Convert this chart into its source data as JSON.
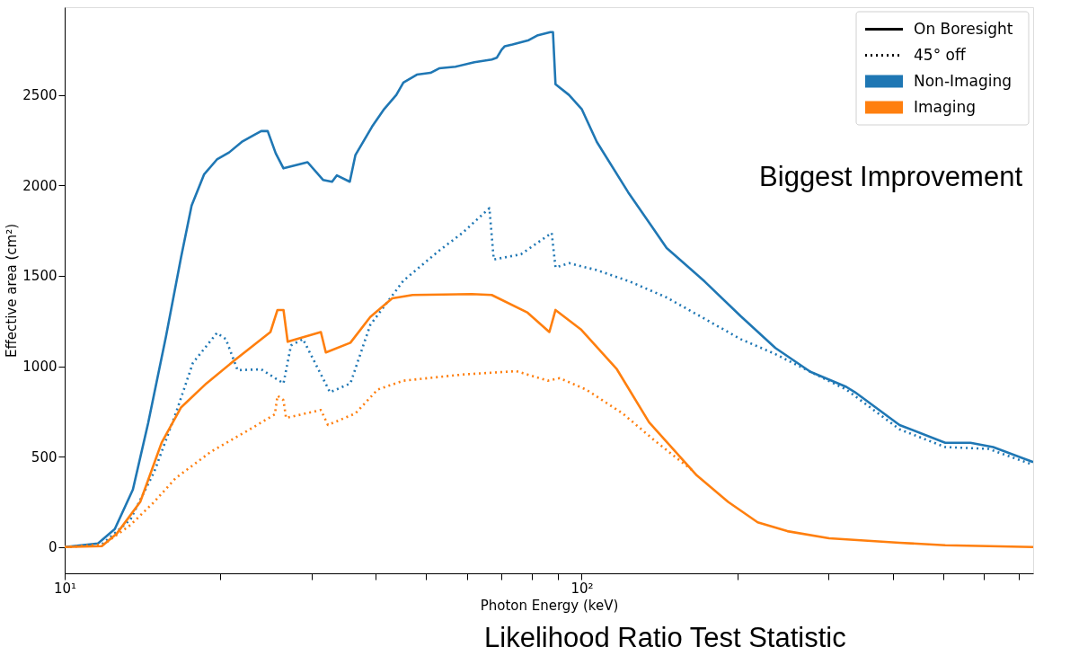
{
  "chart_data": {
    "type": "line",
    "xlabel": "Photon Energy (keV)",
    "ylabel": "Effective area (cm²)",
    "log": "x",
    "xlim": [
      10,
      747
    ],
    "ylim": [
      -145,
      2985
    ],
    "xticks": [
      {
        "value": 10,
        "label": "10¹"
      },
      {
        "value": 20,
        "label": null
      },
      {
        "value": 30,
        "label": null
      },
      {
        "value": 40,
        "label": null
      },
      {
        "value": 50,
        "label": null
      },
      {
        "value": 60,
        "label": null
      },
      {
        "value": 70,
        "label": null
      },
      {
        "value": 80,
        "label": null
      },
      {
        "value": 90,
        "label": null
      },
      {
        "value": 100,
        "label": "10²"
      },
      {
        "value": 200,
        "label": null
      },
      {
        "value": 300,
        "label": null
      },
      {
        "value": 400,
        "label": null
      },
      {
        "value": 500,
        "label": null
      },
      {
        "value": 600,
        "label": null
      },
      {
        "value": 700,
        "label": null
      }
    ],
    "yticks": [
      0,
      500,
      1000,
      1500,
      2000,
      2500
    ],
    "grid": false,
    "legend": "top right",
    "marker": "none",
    "annotations": [
      "On Boresight",
      "45° off",
      "Biggest Improvement",
      "Likelihood Ratio Test Statistic"
    ],
    "series": [
      {
        "name": "Non-Imaging",
        "color": "#1f77b4",
        "line_style": "solid",
        "x": [
          10,
          11.6,
          12.5,
          13.55,
          14.5,
          15.7,
          16.8,
          17.6,
          18.6,
          19.7,
          20.8,
          22,
          23.3,
          24,
          24.7,
          25.6,
          26.5,
          29.5,
          31.6,
          32.9,
          33.6,
          35.6,
          36.5,
          39.3,
          41.5,
          43.8,
          45.2,
          48,
          51,
          53,
          57,
          62,
          67,
          68.5,
          70,
          71,
          73.5,
          79,
          82,
          87,
          88,
          89,
          94.5,
          100,
          107,
          123,
          146,
          173,
          203,
          237,
          277,
          325,
          338,
          412,
          505,
          565,
          625,
          747
        ],
        "values": [
          0,
          20,
          100,
          318,
          685,
          1164,
          1605,
          1888,
          2060,
          2143,
          2182,
          2240,
          2280,
          2300,
          2300,
          2177,
          2094,
          2128,
          2030,
          2020,
          2055,
          2020,
          2167,
          2324,
          2422,
          2500,
          2568,
          2612,
          2622,
          2647,
          2656,
          2681,
          2696,
          2705,
          2750,
          2769,
          2779,
          2803,
          2828,
          2847,
          2847,
          2559,
          2500,
          2422,
          2240,
          1962,
          1654,
          1468,
          1277,
          1101,
          969,
          886,
          856,
          675,
          577,
          577,
          553,
          470
        ]
      },
      {
        "color": "#1f77b4",
        "line_style": "dotted",
        "x": [
          10,
          11.8,
          13.4,
          14.9,
          16.4,
          17.7,
          19.7,
          20.5,
          21.6,
          24,
          26.5,
          27.4,
          28.9,
          32.6,
          35.7,
          39,
          45.2,
          53,
          58.8,
          66.3,
          67.6,
          76.3,
          87.5,
          89,
          94.6,
          107,
          124,
          146,
          173,
          203,
          237,
          277,
          325,
          412,
          505,
          612,
          747
        ],
        "values": [
          0,
          15,
          152,
          416,
          739,
          1018,
          1184,
          1150,
          978,
          983,
          905,
          1115,
          1150,
          856,
          905,
          1228,
          1473,
          1639,
          1737,
          1874,
          1590,
          1619,
          1737,
          1546,
          1570,
          1531,
          1468,
          1380,
          1262,
          1150,
          1067,
          969,
          871,
          651,
          553,
          543,
          455
        ]
      },
      {
        "name": "Imaging",
        "color": "#ff7f0e",
        "line_style": "solid",
        "x": [
          10,
          11.8,
          12.6,
          14,
          15.4,
          16.8,
          18.8,
          21.3,
          25,
          25.8,
          26.5,
          27,
          31.3,
          32,
          35.7,
          39,
          43,
          47.1,
          61.3,
          67,
          78.6,
          86.6,
          89,
          99.6,
          117,
          135,
          167,
          192,
          219,
          250,
          301,
          412,
          505,
          747
        ],
        "values": [
          0,
          5,
          73,
          250,
          577,
          773,
          905,
          1032,
          1189,
          1311,
          1311,
          1135,
          1189,
          1076,
          1130,
          1272,
          1375,
          1394,
          1399,
          1394,
          1296,
          1189,
          1311,
          1204,
          983,
          690,
          396,
          250,
          137,
          88,
          49,
          24,
          10,
          0
        ]
      },
      {
        "color": "#ff7f0e",
        "line_style": "dotted",
        "x": [
          10,
          11.9,
          13.4,
          14.9,
          16.4,
          19.2,
          22.5,
          25.5,
          25.8,
          26.5,
          26.8,
          31.3,
          32.3,
          36.5,
          40.3,
          45.2,
          58.8,
          74.7,
          86,
          90.7,
          102,
          120,
          138,
          165
        ],
        "values": [
          0,
          15,
          122,
          250,
          382,
          528,
          641,
          734,
          837,
          812,
          714,
          758,
          675,
          739,
          871,
          920,
          954,
          973,
          920,
          934,
          871,
          739,
          592,
          416
        ]
      }
    ]
  }
}
